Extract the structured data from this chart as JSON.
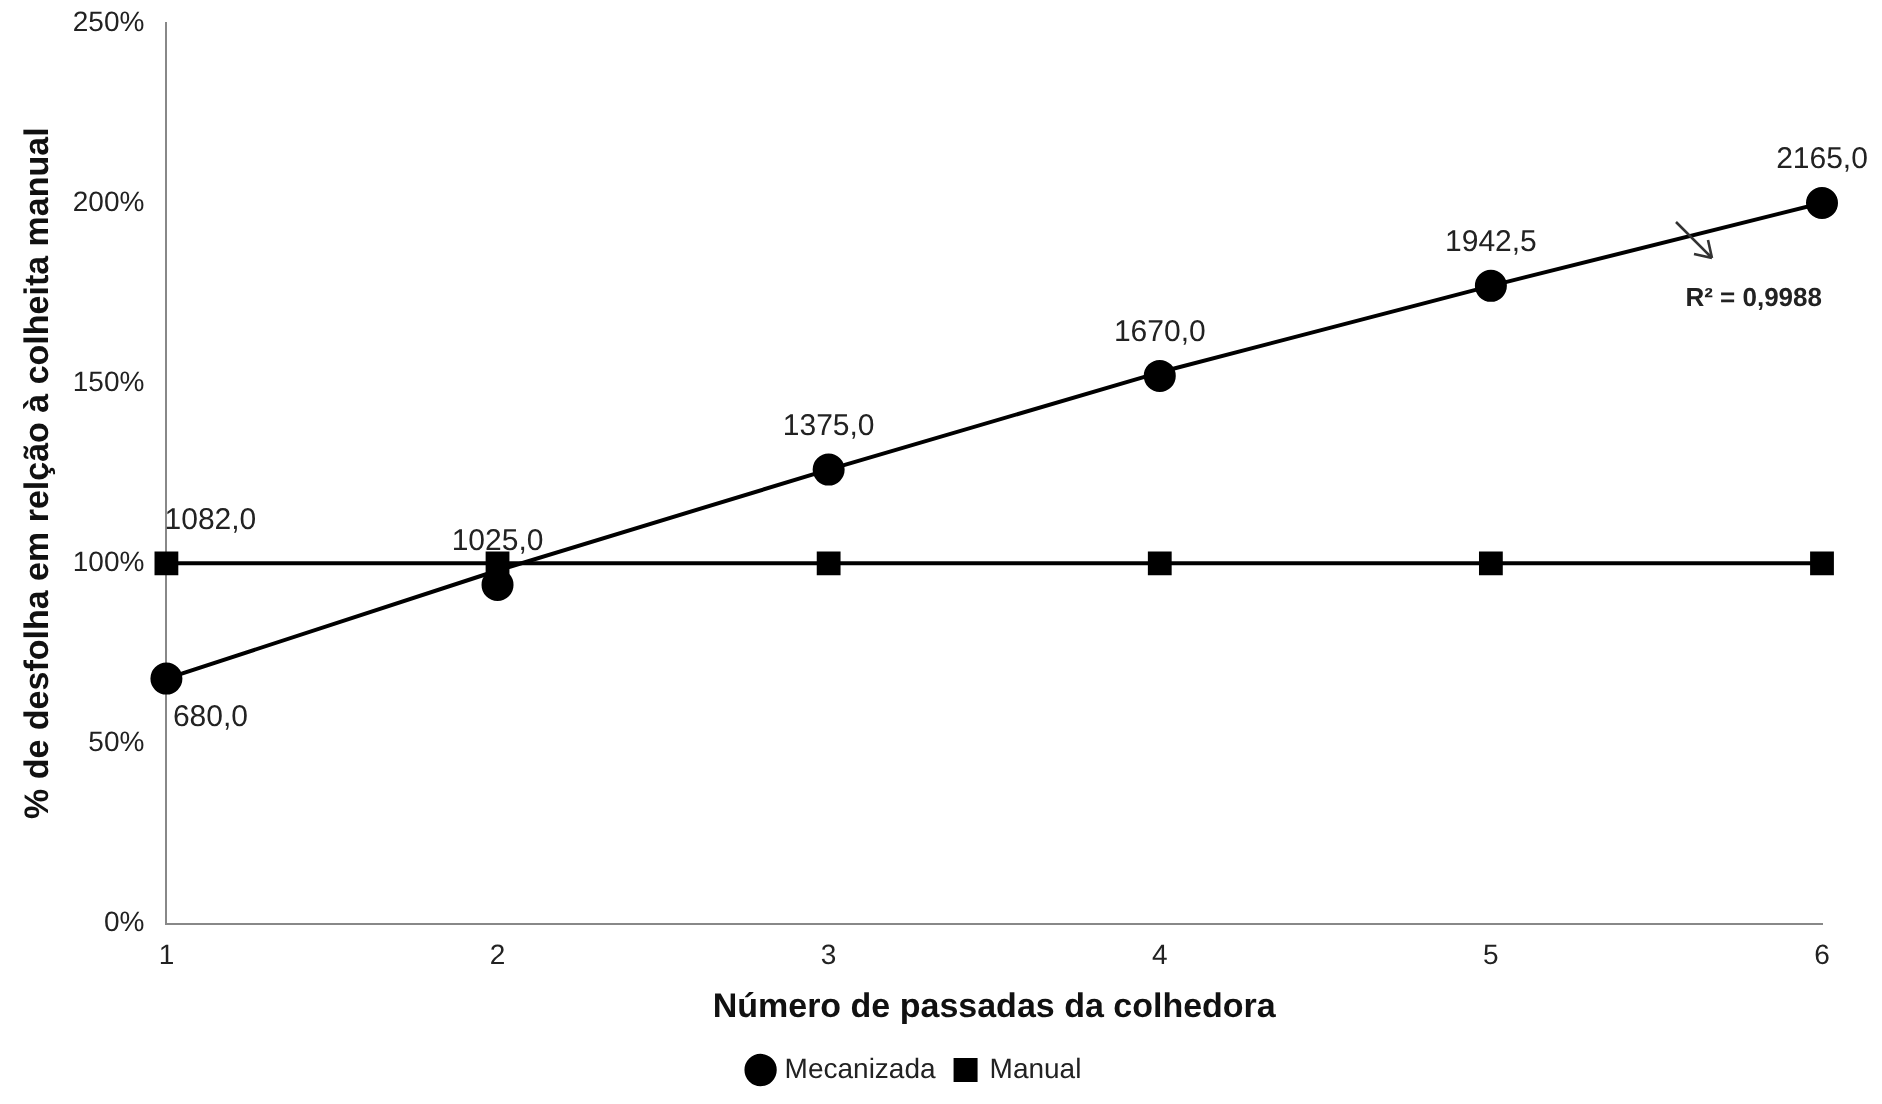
{
  "chart_data": {
    "type": "line",
    "xlabel": "Número de passadas da colhedora",
    "ylabel": "% de desfolha em relção à colheita manual",
    "categories": [
      "1",
      "2",
      "3",
      "4",
      "5",
      "6"
    ],
    "series": [
      {
        "name": "Mecanizada",
        "type": "scatter",
        "marker": "circle",
        "color": "#000000",
        "values": [
          68,
          94,
          126,
          152,
          177,
          200
        ]
      },
      {
        "name": "Manual",
        "type": "line",
        "marker": "square",
        "color": "#000000",
        "values": [
          100,
          100,
          100,
          100,
          100,
          100
        ]
      },
      {
        "marker": "none",
        "color": "#000000",
        "values": [
          68,
          98,
          126,
          153,
          177,
          200
        ]
      }
    ],
    "ylim": [
      0,
      250
    ],
    "yticks": [
      {
        "value": 0,
        "label": "0%"
      },
      {
        "value": 50,
        "label": "50%"
      },
      {
        "value": 100,
        "label": "100%"
      },
      {
        "value": 150,
        "label": "150%"
      },
      {
        "value": 200,
        "label": "200%"
      },
      {
        "value": 250,
        "label": "250%"
      }
    ],
    "grid": false,
    "legend": "bottom",
    "annotations": [
      {
        "text": "680,0",
        "x": "1",
        "y": 68
      },
      {
        "text": "1025,0",
        "x": "2",
        "y": 94
      },
      {
        "text": "1375,0",
        "x": "3",
        "y": 126
      },
      {
        "text": "1670,0",
        "x": "4",
        "y": 152
      },
      {
        "text": "1942,5",
        "x": "5",
        "y": 177
      },
      {
        "text": "2165,0",
        "x": "6",
        "y": 200
      },
      {
        "text": "1082,0",
        "x": "1",
        "y": 100
      },
      "R² = 0,9988"
    ]
  }
}
